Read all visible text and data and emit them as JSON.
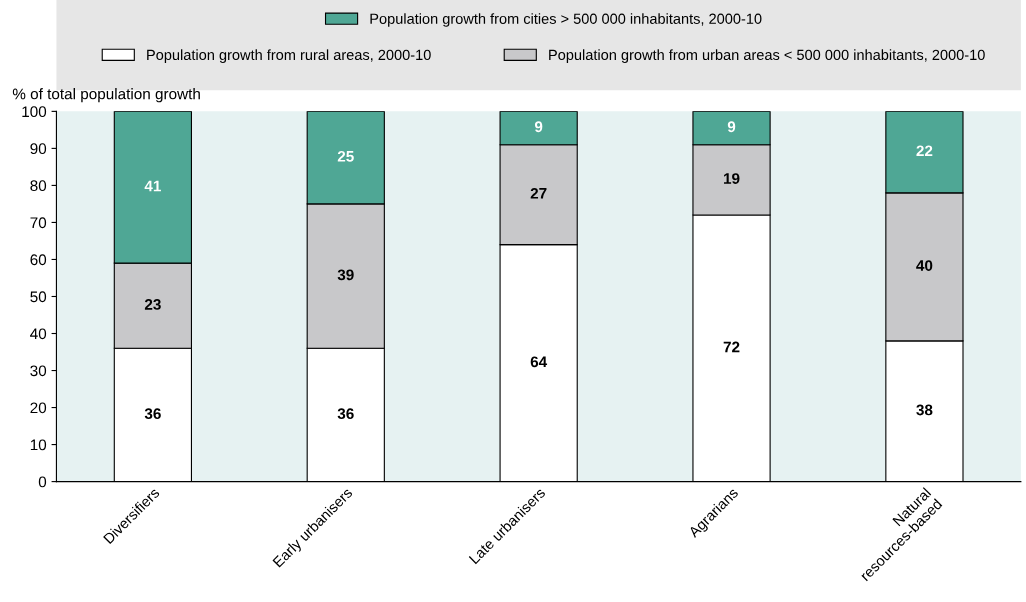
{
  "chart_data": {
    "type": "bar",
    "stacked": true,
    "ylabel": "% of total population growth",
    "categories": [
      "Diversifiers",
      "Early urbanisers",
      "Late urbanisers",
      "Agrarians",
      "Natural\nresources-based"
    ],
    "series": [
      {
        "name": "Population growth from rural areas, 2000-10",
        "color": "#ffffff",
        "values": [
          36,
          36,
          64,
          72,
          38
        ]
      },
      {
        "name": "Population growth from urban areas < 500 000 inhabitants, 2000-10",
        "color": "#c8c8ca",
        "values": [
          23,
          39,
          27,
          19,
          40
        ]
      },
      {
        "name": "Population growth from cities > 500 000 inhabitants, 2000-10",
        "color": "#4fa795",
        "values": [
          41,
          25,
          9,
          9,
          22
        ]
      }
    ],
    "ylim": [
      0,
      100
    ],
    "yticks": [
      0,
      10,
      20,
      30,
      40,
      50,
      60,
      70,
      80,
      90,
      100
    ],
    "data_labels": true,
    "grid": false,
    "legend": "top"
  }
}
